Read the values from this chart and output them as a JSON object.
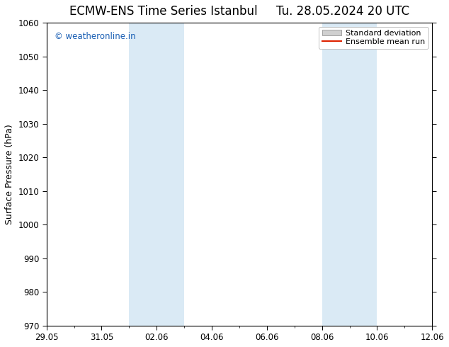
{
  "title_left": "ECMW-ENS Time Series Istanbul",
  "title_right": "Tu. 28.05.2024 20 UTC",
  "ylabel": "Surface Pressure (hPa)",
  "ylim": [
    970,
    1060
  ],
  "yticks": [
    970,
    980,
    990,
    1000,
    1010,
    1020,
    1030,
    1040,
    1050,
    1060
  ],
  "xtick_labels": [
    "29.05",
    "31.05",
    "02.06",
    "04.06",
    "06.06",
    "08.06",
    "10.06",
    "12.06"
  ],
  "xtick_positions": [
    0,
    2,
    4,
    6,
    8,
    10,
    12,
    14
  ],
  "xlim": [
    0,
    14
  ],
  "shaded_regions": [
    {
      "x_start": 3,
      "x_end": 5
    },
    {
      "x_start": 10,
      "x_end": 12
    }
  ],
  "shaded_color": "#daeaf5",
  "background_color": "#ffffff",
  "watermark_text": "© weatheronline.in",
  "watermark_color": "#1a5fb4",
  "legend_std_label": "Standard deviation",
  "legend_mean_label": "Ensemble mean run",
  "legend_std_color": "#d0d0d0",
  "legend_std_edge": "#888888",
  "legend_mean_color": "#dd2200",
  "title_fontsize": 12,
  "axis_label_fontsize": 9,
  "tick_fontsize": 8.5,
  "watermark_fontsize": 8.5,
  "legend_fontsize": 8
}
